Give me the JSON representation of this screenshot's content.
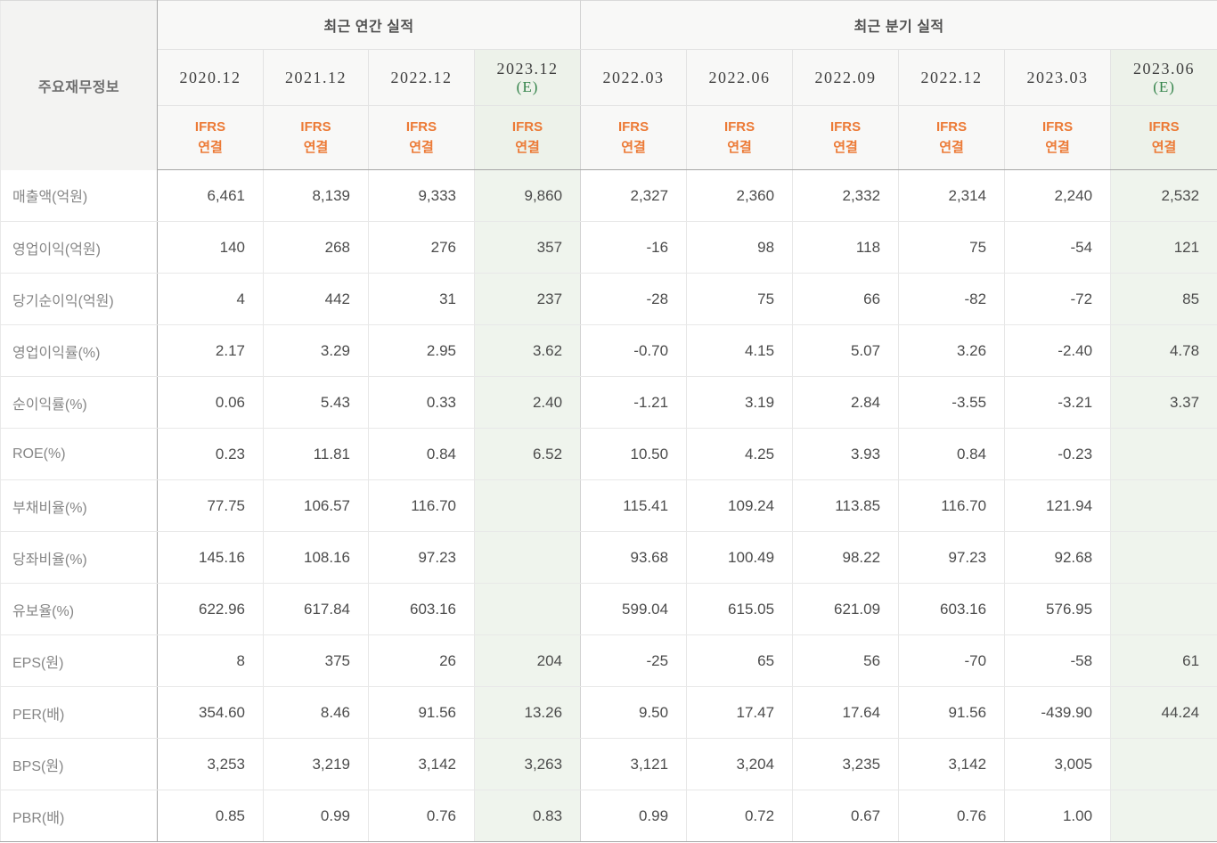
{
  "colors": {
    "negative_value": "#d6402a",
    "accounting_standard": "#ec7a36",
    "estimate_mark": "#35844b",
    "estimate_column_bg": "#eff4ed",
    "header_bg": "#f8f8f7",
    "row_label_text": "#868686",
    "value_text": "#4c4c4c"
  },
  "table": {
    "corner_label": "주요재무정보",
    "groups": [
      {
        "label": "최근 연간 실적",
        "span": 4
      },
      {
        "label": "최근 분기 실적",
        "span": 6
      }
    ],
    "columns": [
      {
        "period": "2020.12",
        "estimate": false,
        "estimate_mark": "",
        "standard": "IFRS\n연결",
        "group": 0
      },
      {
        "period": "2021.12",
        "estimate": false,
        "estimate_mark": "",
        "standard": "IFRS\n연결",
        "group": 0
      },
      {
        "period": "2022.12",
        "estimate": false,
        "estimate_mark": "",
        "standard": "IFRS\n연결",
        "group": 0
      },
      {
        "period": "2023.12",
        "estimate": true,
        "estimate_mark": "(E)",
        "standard": "IFRS\n연결",
        "group": 0
      },
      {
        "period": "2022.03",
        "estimate": false,
        "estimate_mark": "",
        "standard": "IFRS\n연결",
        "group": 1
      },
      {
        "period": "2022.06",
        "estimate": false,
        "estimate_mark": "",
        "standard": "IFRS\n연결",
        "group": 1
      },
      {
        "period": "2022.09",
        "estimate": false,
        "estimate_mark": "",
        "standard": "IFRS\n연결",
        "group": 1
      },
      {
        "period": "2022.12",
        "estimate": false,
        "estimate_mark": "",
        "standard": "IFRS\n연결",
        "group": 1
      },
      {
        "period": "2023.03",
        "estimate": false,
        "estimate_mark": "",
        "standard": "IFRS\n연결",
        "group": 1
      },
      {
        "period": "2023.06",
        "estimate": true,
        "estimate_mark": "(E)",
        "standard": "IFRS\n연결",
        "group": 1
      }
    ],
    "rows": [
      {
        "label": "매출액(억원)",
        "values": [
          "6,461",
          "8,139",
          "9,333",
          "9,860",
          "2,327",
          "2,360",
          "2,332",
          "2,314",
          "2,240",
          "2,532"
        ]
      },
      {
        "label": "영업이익(억원)",
        "values": [
          "140",
          "268",
          "276",
          "357",
          "-16",
          "98",
          "118",
          "75",
          "-54",
          "121"
        ]
      },
      {
        "label": "당기순이익(억원)",
        "values": [
          "4",
          "442",
          "31",
          "237",
          "-28",
          "75",
          "66",
          "-82",
          "-72",
          "85"
        ]
      },
      {
        "label": "영업이익률(%)",
        "values": [
          "2.17",
          "3.29",
          "2.95",
          "3.62",
          "-0.70",
          "4.15",
          "5.07",
          "3.26",
          "-2.40",
          "4.78"
        ]
      },
      {
        "label": "순이익률(%)",
        "values": [
          "0.06",
          "5.43",
          "0.33",
          "2.40",
          "-1.21",
          "3.19",
          "2.84",
          "-3.55",
          "-3.21",
          "3.37"
        ]
      },
      {
        "label": "ROE(%)",
        "values": [
          "0.23",
          "11.81",
          "0.84",
          "6.52",
          "10.50",
          "4.25",
          "3.93",
          "0.84",
          "-0.23",
          ""
        ]
      },
      {
        "label": "부채비율(%)",
        "values": [
          "77.75",
          "106.57",
          "116.70",
          "",
          "115.41",
          "109.24",
          "113.85",
          "116.70",
          "121.94",
          ""
        ]
      },
      {
        "label": "당좌비율(%)",
        "values": [
          "145.16",
          "108.16",
          "97.23",
          "",
          "93.68",
          "100.49",
          "98.22",
          "97.23",
          "92.68",
          ""
        ]
      },
      {
        "label": "유보율(%)",
        "values": [
          "622.96",
          "617.84",
          "603.16",
          "",
          "599.04",
          "615.05",
          "621.09",
          "603.16",
          "576.95",
          ""
        ]
      },
      {
        "label": "EPS(원)",
        "values": [
          "8",
          "375",
          "26",
          "204",
          "-25",
          "65",
          "56",
          "-70",
          "-58",
          "61"
        ]
      },
      {
        "label": "PER(배)",
        "values": [
          "354.60",
          "8.46",
          "91.56",
          "13.26",
          "9.50",
          "17.47",
          "17.64",
          "91.56",
          "-439.90",
          "44.24"
        ]
      },
      {
        "label": "BPS(원)",
        "values": [
          "3,253",
          "3,219",
          "3,142",
          "3,263",
          "3,121",
          "3,204",
          "3,235",
          "3,142",
          "3,005",
          ""
        ]
      },
      {
        "label": "PBR(배)",
        "values": [
          "0.85",
          "0.99",
          "0.76",
          "0.83",
          "0.99",
          "0.72",
          "0.67",
          "0.76",
          "1.00",
          ""
        ]
      }
    ]
  }
}
